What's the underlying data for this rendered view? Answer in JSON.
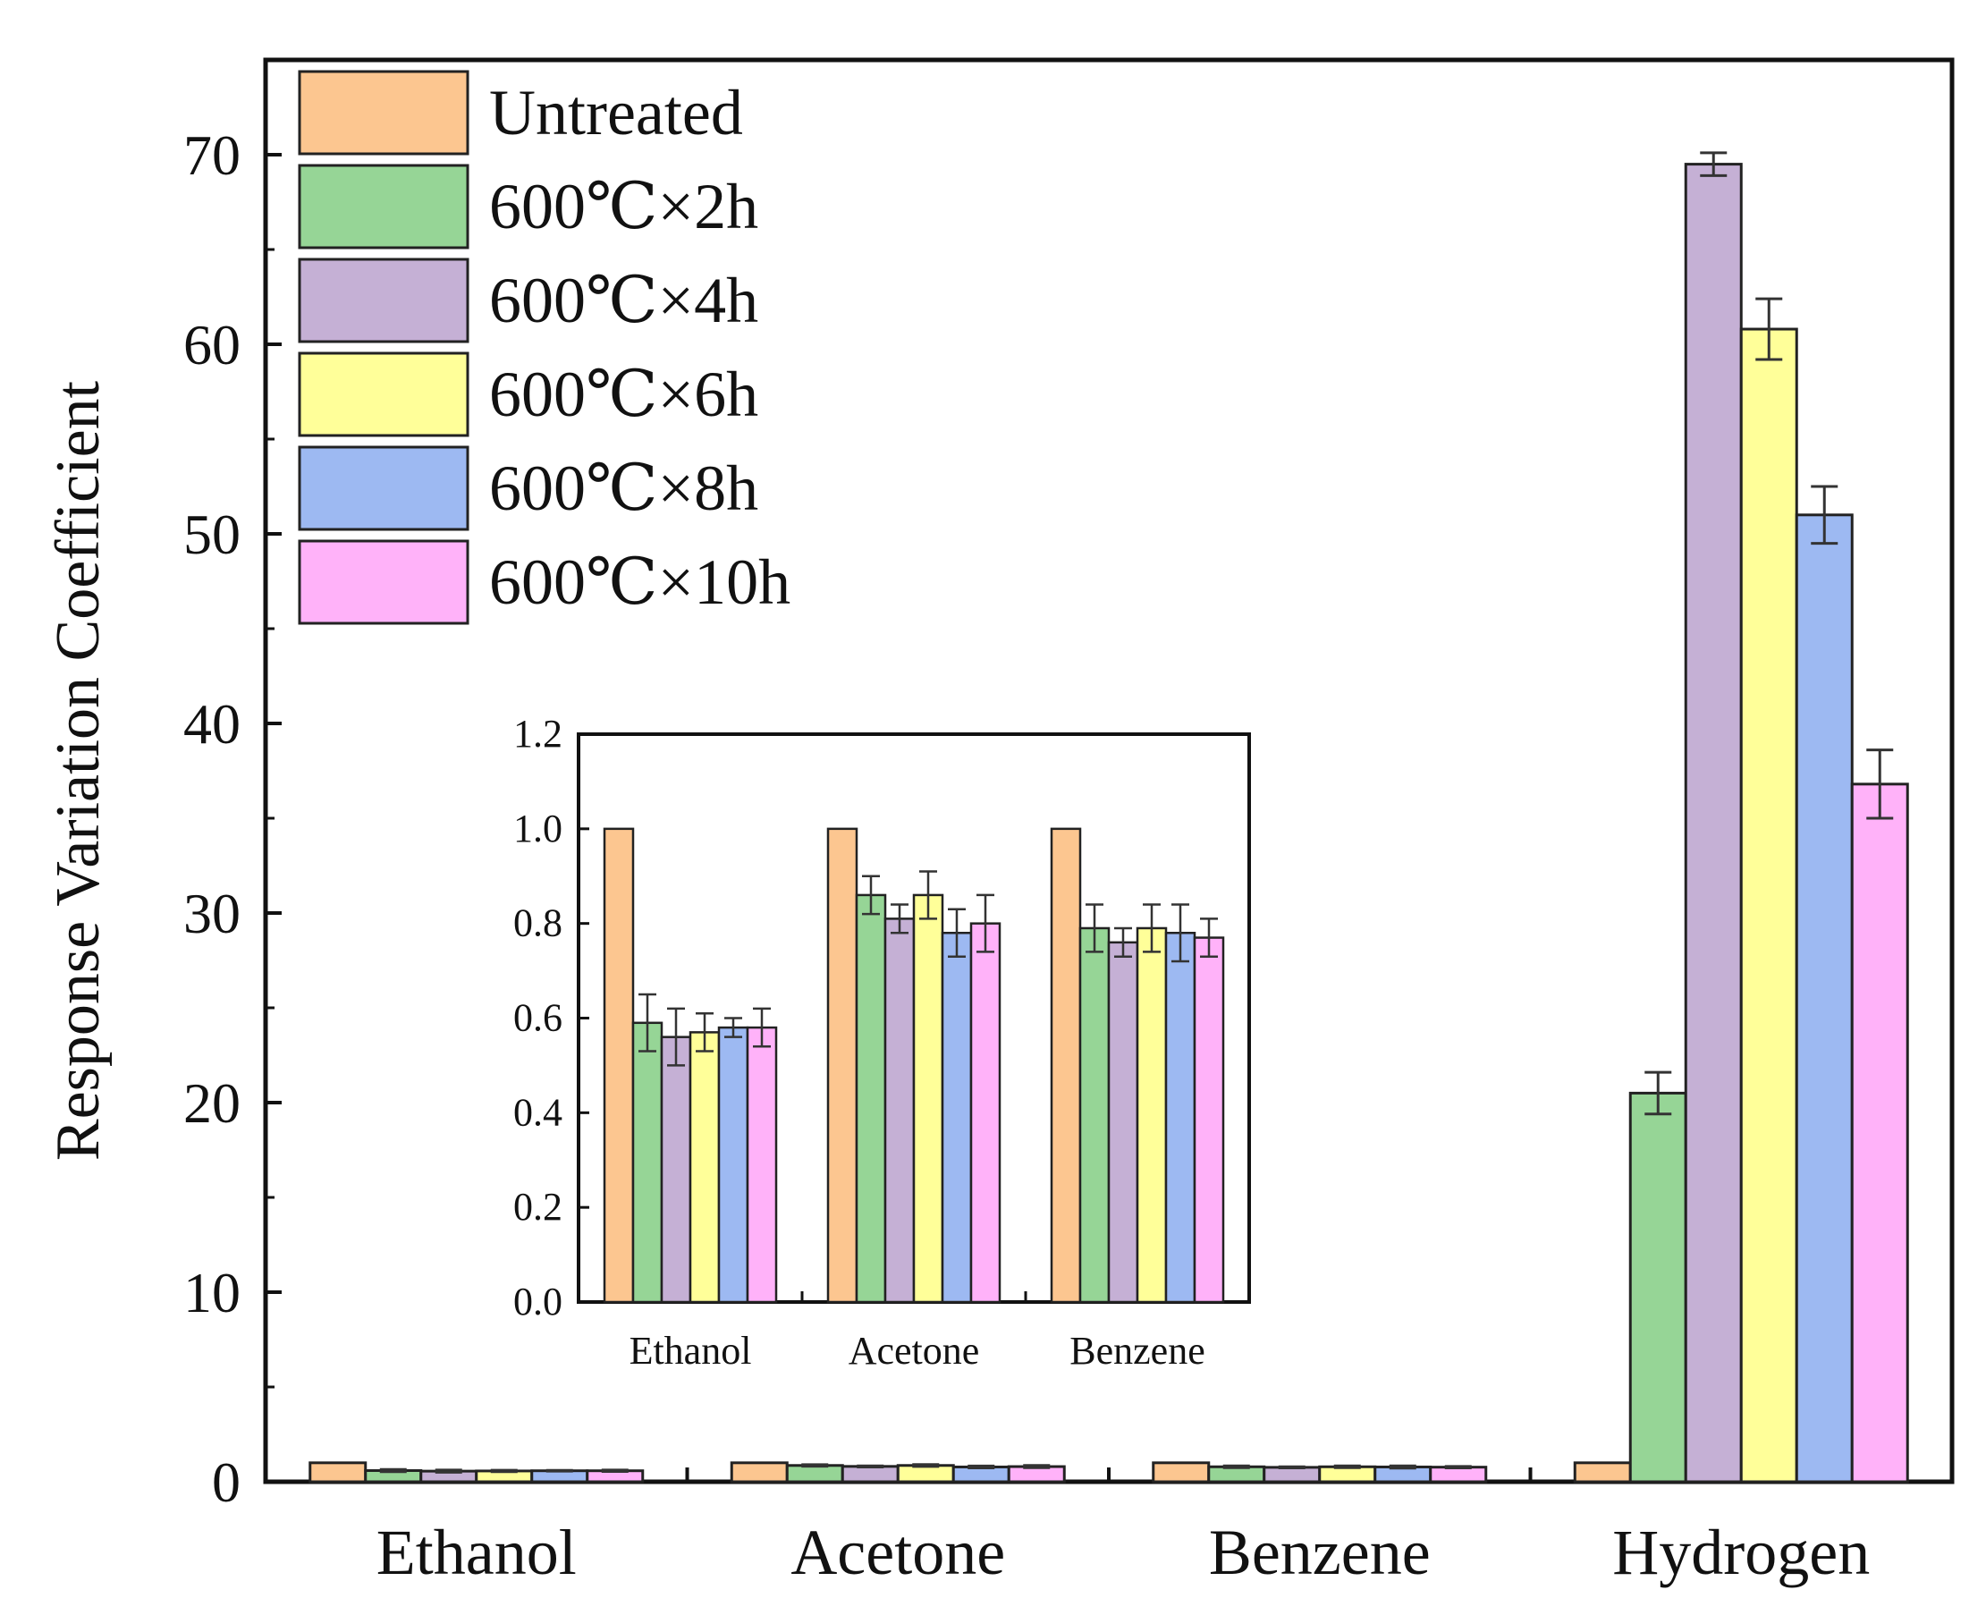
{
  "colors": {
    "Untreated": "#FCC690",
    "600℃×2h": "#96D596",
    "600℃×4h": "#C5B0D5",
    "600℃×6h": "#FFFF99",
    "600℃×8h": "#9DB9F2",
    "600℃×10h": "#FFB2F9"
  },
  "chart_data": [
    {
      "type": "bar",
      "name": "main",
      "ylabel": "Response Variation Coefficient",
      "xlabel": "",
      "ylim": [
        0,
        75
      ],
      "yticks": [
        0,
        10,
        20,
        30,
        40,
        50,
        60,
        70
      ],
      "categories": [
        "Ethanol",
        "Acetone",
        "Benzene",
        "Hydrogen"
      ],
      "legend": "top-left",
      "series": [
        {
          "name": "Untreated",
          "values": [
            1.0,
            1.0,
            1.0,
            1.0
          ],
          "errors": [
            0,
            0,
            0,
            0
          ]
        },
        {
          "name": "600℃×2h",
          "values": [
            0.59,
            0.86,
            0.79,
            20.5
          ],
          "errors": [
            0.06,
            0.04,
            0.05,
            1.1
          ]
        },
        {
          "name": "600℃×4h",
          "values": [
            0.56,
            0.81,
            0.76,
            69.5
          ],
          "errors": [
            0.06,
            0.03,
            0.03,
            0.6
          ]
        },
        {
          "name": "600℃×6h",
          "values": [
            0.57,
            0.86,
            0.79,
            60.8
          ],
          "errors": [
            0.04,
            0.05,
            0.05,
            1.6
          ]
        },
        {
          "name": "600℃×8h",
          "values": [
            0.58,
            0.78,
            0.78,
            51.0
          ],
          "errors": [
            0.02,
            0.05,
            0.06,
            1.5
          ]
        },
        {
          "name": "600℃×10h",
          "values": [
            0.58,
            0.8,
            0.77,
            36.8
          ],
          "errors": [
            0.04,
            0.06,
            0.04,
            1.8
          ]
        }
      ]
    },
    {
      "type": "bar",
      "name": "inset",
      "ylim": [
        0,
        1.2
      ],
      "yticks": [
        "0.0",
        "0.2",
        "0.4",
        "0.6",
        "0.8",
        "1.0",
        "1.2"
      ],
      "categories": [
        "Ethanol",
        "Acetone",
        "Benzene"
      ],
      "series": [
        {
          "name": "Untreated",
          "values": [
            1.0,
            1.0,
            1.0
          ],
          "errors": [
            0,
            0,
            0
          ]
        },
        {
          "name": "600℃×2h",
          "values": [
            0.59,
            0.86,
            0.79
          ],
          "errors": [
            0.06,
            0.04,
            0.05
          ]
        },
        {
          "name": "600℃×4h",
          "values": [
            0.56,
            0.81,
            0.76
          ],
          "errors": [
            0.06,
            0.03,
            0.03
          ]
        },
        {
          "name": "600℃×6h",
          "values": [
            0.57,
            0.86,
            0.79
          ],
          "errors": [
            0.04,
            0.05,
            0.05
          ]
        },
        {
          "name": "600℃×8h",
          "values": [
            0.58,
            0.78,
            0.78
          ],
          "errors": [
            0.02,
            0.05,
            0.06
          ]
        },
        {
          "name": "600℃×10h",
          "values": [
            0.58,
            0.8,
            0.77
          ],
          "errors": [
            0.04,
            0.06,
            0.04
          ]
        }
      ]
    }
  ]
}
